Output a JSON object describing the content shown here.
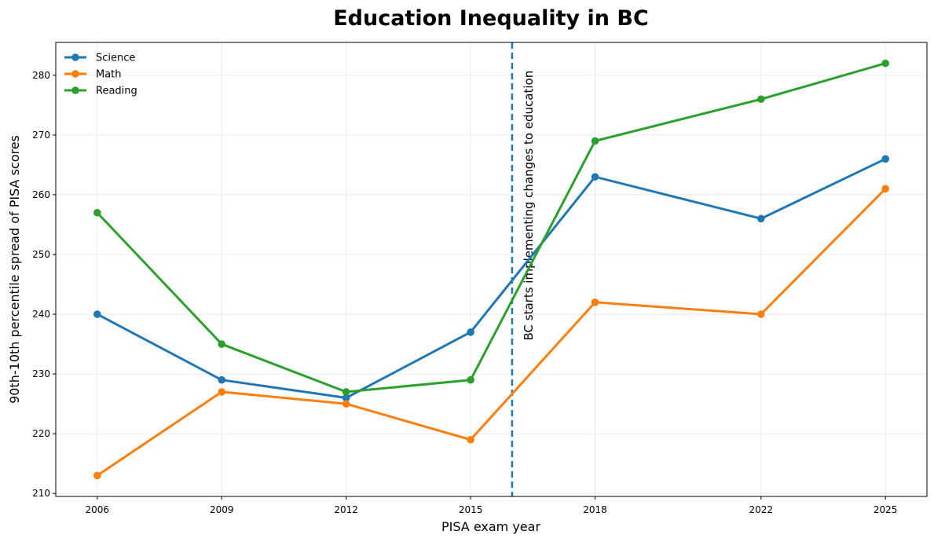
{
  "chart_data": {
    "type": "line",
    "title": "Education Inequality in BC",
    "xlabel": "PISA exam year",
    "ylabel": "90th-10th percentile spread of PISA scores",
    "x": [
      2006,
      2009,
      2012,
      2015,
      2018,
      2022,
      2025
    ],
    "xlim": [
      2005,
      2026
    ],
    "ylim": [
      209.5,
      285.5
    ],
    "yticks": [
      210,
      220,
      230,
      240,
      250,
      260,
      270,
      280
    ],
    "grid": true,
    "legend_position": "top-left",
    "series": [
      {
        "name": "Science",
        "color": "#1f77b4",
        "values": [
          240,
          229,
          226,
          237,
          263,
          256,
          266
        ]
      },
      {
        "name": "Math",
        "color": "#ff7f0e",
        "values": [
          213,
          227,
          225,
          219,
          242,
          240,
          261
        ]
      },
      {
        "name": "Reading",
        "color": "#2ca02c",
        "values": [
          257,
          235,
          227,
          229,
          269,
          276,
          282
        ]
      }
    ],
    "annotations": [
      {
        "x": 2016,
        "text": "BC starts implementing changes to education",
        "line_style": "dashed",
        "color": "#1f77b4"
      }
    ]
  }
}
